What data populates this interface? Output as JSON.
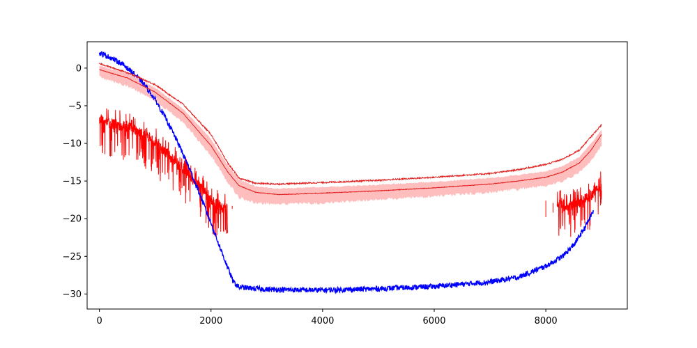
{
  "chart_data": {
    "type": "line",
    "title": "",
    "xlabel": "",
    "ylabel": "",
    "xlim": [
      -220,
      9460
    ],
    "ylim": [
      -32,
      3.5
    ],
    "x_ticks": [
      0,
      2000,
      4000,
      6000,
      8000
    ],
    "y_ticks": [
      0,
      -5,
      -10,
      -15,
      -20,
      -25,
      -30
    ],
    "x_tick_labels": [
      "0",
      "2000",
      "4000",
      "6000",
      "8000"
    ],
    "y_tick_labels": [
      "0",
      "−5",
      "−10",
      "−15",
      "−20",
      "−25",
      "−30"
    ],
    "grid": false,
    "legend": "none",
    "colors": {
      "blue_series": "#0000ff",
      "red_series": "#ff0000",
      "mean": "#e0201f",
      "band": "#ffb3b3"
    },
    "series": [
      {
        "id": "blue",
        "color": "#0000ff",
        "noise": 0.35,
        "points": [
          [
            0,
            2.0
          ],
          [
            200,
            1.4
          ],
          [
            400,
            0.6
          ],
          [
            600,
            -0.6
          ],
          [
            800,
            -2.1
          ],
          [
            1000,
            -4.2
          ],
          [
            1200,
            -6.8
          ],
          [
            1400,
            -9.8
          ],
          [
            1600,
            -13.1
          ],
          [
            1800,
            -16.8
          ],
          [
            2000,
            -20.6
          ],
          [
            2200,
            -24.6
          ],
          [
            2400,
            -28.4
          ],
          [
            2500,
            -29.1
          ],
          [
            3000,
            -29.4
          ],
          [
            4000,
            -29.5
          ],
          [
            5000,
            -29.3
          ],
          [
            6000,
            -29.0
          ],
          [
            7000,
            -28.4
          ],
          [
            7500,
            -27.8
          ],
          [
            8000,
            -26.3
          ],
          [
            8300,
            -25.0
          ],
          [
            8500,
            -23.5
          ],
          [
            8700,
            -21.2
          ],
          [
            8850,
            -19.0
          ]
        ]
      },
      {
        "id": "red_noisy_left",
        "color": "#ff0000",
        "spiky": true,
        "points": [
          [
            0,
            -7.0
          ],
          [
            300,
            -7.5
          ],
          [
            600,
            -8.0
          ],
          [
            900,
            -9.2
          ],
          [
            1200,
            -11.3
          ],
          [
            1500,
            -13.5
          ],
          [
            1800,
            -15.5
          ],
          [
            2050,
            -17.8
          ],
          [
            2200,
            -18.5
          ],
          [
            2300,
            -18.6
          ]
        ]
      },
      {
        "id": "red_noisy_right",
        "color": "#ff0000",
        "spiky": true,
        "points": [
          [
            8200,
            -18.0
          ],
          [
            8400,
            -18.2
          ],
          [
            8600,
            -17.8
          ],
          [
            8800,
            -17.0
          ],
          [
            9000,
            -15.6
          ]
        ]
      },
      {
        "id": "red_upper",
        "color": "#e0201f",
        "noise": 0.1,
        "points": [
          [
            0,
            0.6
          ],
          [
            500,
            -0.6
          ],
          [
            1000,
            -2.2
          ],
          [
            1500,
            -4.8
          ],
          [
            2000,
            -8.8
          ],
          [
            2300,
            -12.6
          ],
          [
            2500,
            -14.6
          ],
          [
            2800,
            -15.3
          ],
          [
            3200,
            -15.4
          ],
          [
            4000,
            -15.2
          ],
          [
            5000,
            -14.9
          ],
          [
            6000,
            -14.5
          ],
          [
            7000,
            -14.0
          ],
          [
            7500,
            -13.5
          ],
          [
            8000,
            -12.8
          ],
          [
            8300,
            -12.1
          ],
          [
            8600,
            -10.9
          ],
          [
            8800,
            -9.2
          ],
          [
            9000,
            -7.5
          ]
        ]
      },
      {
        "id": "red_mean",
        "color": "#e0201f",
        "noise": 0.04,
        "points": [
          [
            0,
            -0.2
          ],
          [
            500,
            -1.3
          ],
          [
            1000,
            -3.2
          ],
          [
            1500,
            -6.0
          ],
          [
            2000,
            -10.3
          ],
          [
            2300,
            -13.8
          ],
          [
            2500,
            -15.6
          ],
          [
            2800,
            -16.5
          ],
          [
            3200,
            -16.8
          ],
          [
            4000,
            -16.6
          ],
          [
            5000,
            -16.3
          ],
          [
            6000,
            -15.9
          ],
          [
            7000,
            -15.4
          ],
          [
            7500,
            -15.0
          ],
          [
            8000,
            -14.5
          ],
          [
            8300,
            -13.8
          ],
          [
            8600,
            -12.6
          ],
          [
            8800,
            -11.0
          ],
          [
            9000,
            -8.8
          ]
        ]
      }
    ],
    "band": {
      "color": "#ffb3b3",
      "upper": [
        [
          0,
          0.3
        ],
        [
          500,
          -0.7
        ],
        [
          1000,
          -2.6
        ],
        [
          1500,
          -5.4
        ],
        [
          2000,
          -9.4
        ],
        [
          2300,
          -12.9
        ],
        [
          2500,
          -14.8
        ],
        [
          2800,
          -15.7
        ],
        [
          3200,
          -16.0
        ],
        [
          4000,
          -15.8
        ],
        [
          5000,
          -15.5
        ],
        [
          6000,
          -15.1
        ],
        [
          7000,
          -14.6
        ],
        [
          7500,
          -14.2
        ],
        [
          8000,
          -13.7
        ],
        [
          8300,
          -13.0
        ],
        [
          8600,
          -11.8
        ],
        [
          8800,
          -10.1
        ],
        [
          9000,
          -8.2
        ]
      ],
      "lower": [
        [
          0,
          -1.2
        ],
        [
          500,
          -2.4
        ],
        [
          1000,
          -4.3
        ],
        [
          1500,
          -7.2
        ],
        [
          2000,
          -11.6
        ],
        [
          2300,
          -15.2
        ],
        [
          2500,
          -17.2
        ],
        [
          2800,
          -17.9
        ],
        [
          3200,
          -18.1
        ],
        [
          4000,
          -17.9
        ],
        [
          5000,
          -17.5
        ],
        [
          6000,
          -17.0
        ],
        [
          7000,
          -16.5
        ],
        [
          7500,
          -16.1
        ],
        [
          8000,
          -15.6
        ],
        [
          8300,
          -15.0
        ],
        [
          8600,
          -13.9
        ],
        [
          8800,
          -12.3
        ],
        [
          9000,
          -10.3
        ]
      ]
    },
    "vertical_marks": [
      {
        "x": 2280,
        "y": -18.6,
        "length": 0.5
      },
      {
        "x": 2380,
        "y": -18.7,
        "length": 0.4
      },
      {
        "x": 8000,
        "y": -19.8,
        "length": 2.2
      },
      {
        "x": 8130,
        "y": -19.2,
        "length": 1.3
      }
    ]
  }
}
